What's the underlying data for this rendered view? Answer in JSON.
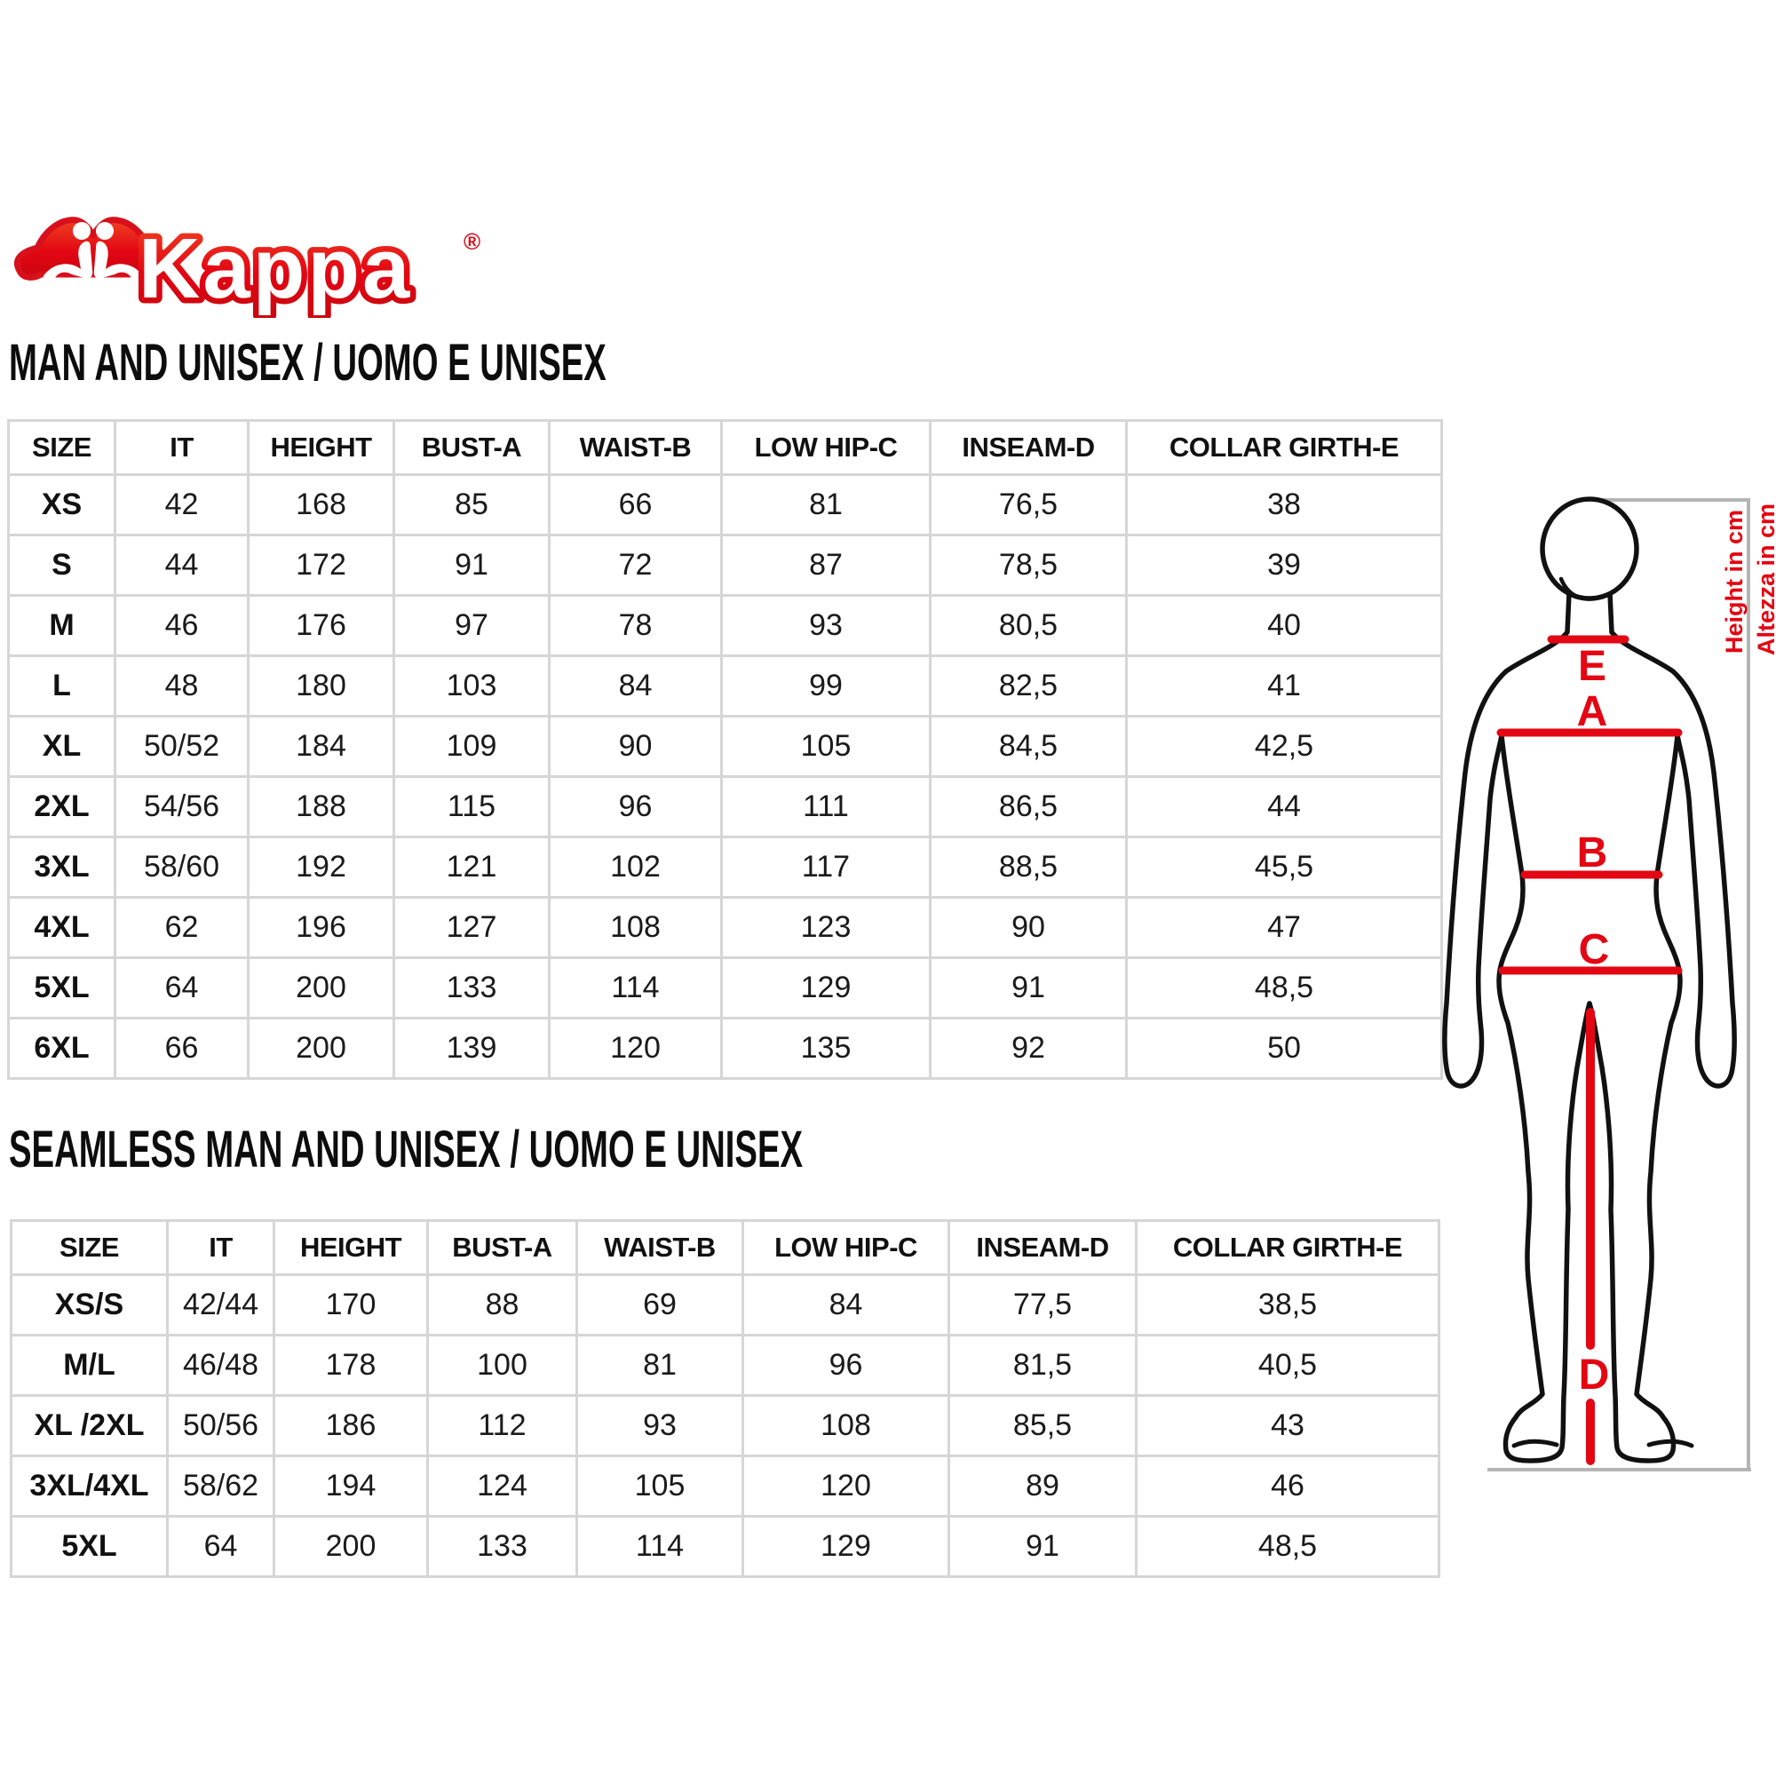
{
  "brand": {
    "name": "Kappa",
    "registered": "®"
  },
  "colors": {
    "accent_red": "#e30613",
    "logo_red": "#d8101c",
    "table_border": "#d6d6d6",
    "bracket_gray": "#b4b4b4",
    "text": "#1a1a1a"
  },
  "tables": [
    {
      "title": "MAN AND UNISEX / UOMO E UNISEX",
      "headers": [
        "SIZE",
        "IT",
        "HEIGHT",
        "BUST-A",
        "WAIST-B",
        "LOW HIP-C",
        "INSEAM-D",
        "COLLAR GIRTH-E"
      ],
      "rows": [
        [
          "XS",
          "42",
          "168",
          "85",
          "66",
          "81",
          "76,5",
          "38"
        ],
        [
          "S",
          "44",
          "172",
          "91",
          "72",
          "87",
          "78,5",
          "39"
        ],
        [
          "M",
          "46",
          "176",
          "97",
          "78",
          "93",
          "80,5",
          "40"
        ],
        [
          "L",
          "48",
          "180",
          "103",
          "84",
          "99",
          "82,5",
          "41"
        ],
        [
          "XL",
          "50/52",
          "184",
          "109",
          "90",
          "105",
          "84,5",
          "42,5"
        ],
        [
          "2XL",
          "54/56",
          "188",
          "115",
          "96",
          "111",
          "86,5",
          "44"
        ],
        [
          "3XL",
          "58/60",
          "192",
          "121",
          "102",
          "117",
          "88,5",
          "45,5"
        ],
        [
          "4XL",
          "62",
          "196",
          "127",
          "108",
          "123",
          "90",
          "47"
        ],
        [
          "5XL",
          "64",
          "200",
          "133",
          "114",
          "129",
          "91",
          "48,5"
        ],
        [
          "6XL",
          "66",
          "200",
          "139",
          "120",
          "135",
          "92",
          "50"
        ]
      ]
    },
    {
      "title": "SEAMLESS MAN AND UNISEX / UOMO E UNISEX",
      "headers": [
        "SIZE",
        "IT",
        "HEIGHT",
        "BUST-A",
        "WAIST-B",
        "LOW HIP-C",
        "INSEAM-D",
        "COLLAR GIRTH-E"
      ],
      "rows": [
        [
          "XS/S",
          "42/44",
          "170",
          "88",
          "69",
          "84",
          "77,5",
          "38,5"
        ],
        [
          "M/L",
          "46/48",
          "178",
          "100",
          "81",
          "96",
          "81,5",
          "40,5"
        ],
        [
          "XL /2XL",
          "50/56",
          "186",
          "112",
          "93",
          "108",
          "85,5",
          "43"
        ],
        [
          "3XL/4XL",
          "58/62",
          "194",
          "124",
          "105",
          "120",
          "89",
          "46"
        ],
        [
          "5XL",
          "64",
          "200",
          "133",
          "114",
          "129",
          "91",
          "48,5"
        ]
      ]
    }
  ],
  "figure": {
    "measure_labels": {
      "neck": "E",
      "bust": "A",
      "waist": "B",
      "hip": "C",
      "inseam": "D"
    },
    "height_caption_en": "Height in cm",
    "height_caption_it": "Altezza in cm"
  }
}
